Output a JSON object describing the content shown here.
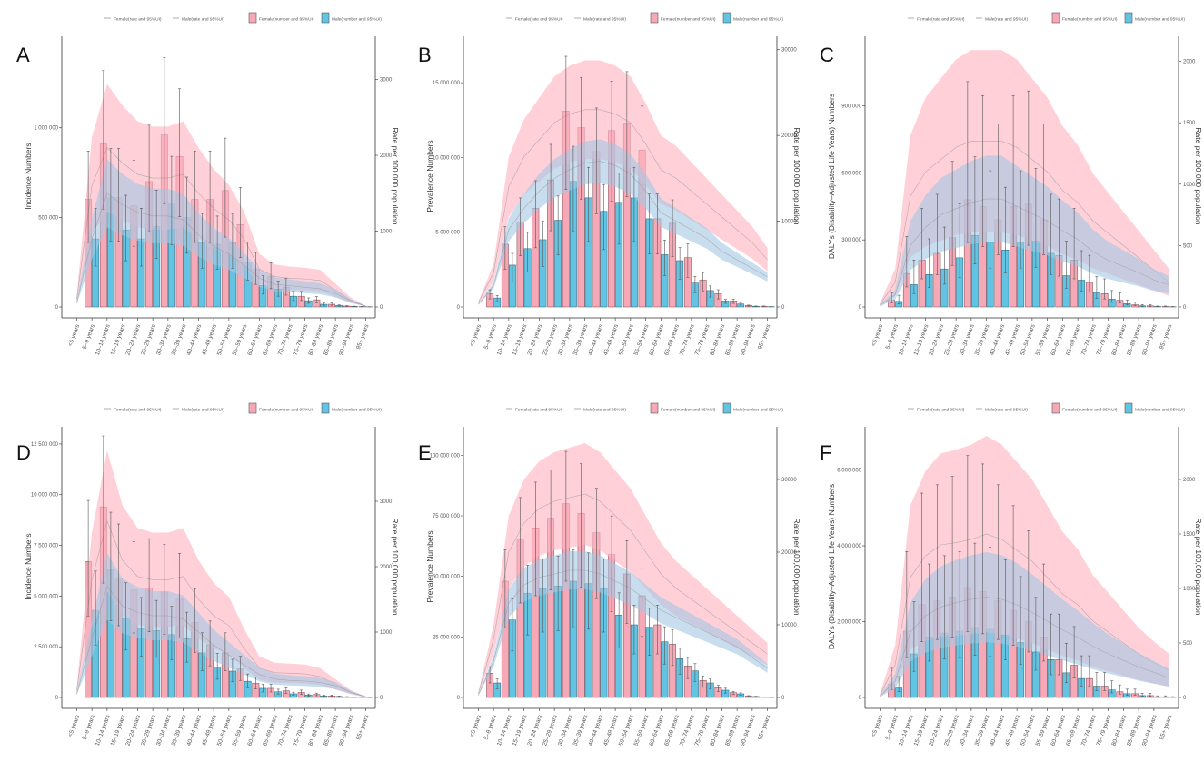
{
  "chart_data": {
    "type": "bar",
    "categories": [
      "<5 years",
      "5–9 years",
      "10–14 years",
      "15–19 years",
      "20–24 years",
      "25–29 years",
      "30–34 years",
      "35–39 years",
      "40–44 years",
      "45–49 years",
      "50–54 years",
      "55–59 years",
      "60–64 years",
      "65–69 years",
      "70–74 years",
      "75–79 years",
      "80–84 years",
      "85–89 years",
      "90–94 years",
      "95+ years"
    ],
    "legend": [
      "Female(rate and 95%UI)",
      "Male(rate and 95%UI)",
      "Female(number and 95%UI)",
      "Male(number and 95%UI)"
    ],
    "legend_placement": "top",
    "right_axis_label": "Rate per 100,000 population",
    "colors": {
      "female_bar": "#f7a8b6",
      "male_bar": "#62c3e3",
      "female_band": "#ffb3c0",
      "male_band": "#a6c8e4",
      "line": "#999999"
    },
    "panels": [
      {
        "letter": "A",
        "ylabel": "Incidence Numbers",
        "left_max": 1460000,
        "left_ticks": [
          0,
          500000,
          1000000
        ],
        "left_tick_labels": [
          "0",
          "500 000",
          "1 000 000"
        ],
        "right_max": 3450,
        "right_ticks": [
          0,
          1000,
          2000,
          3000
        ],
        "female": [
          0,
          600000,
          910000,
          610000,
          565000,
          700000,
          960000,
          840000,
          600000,
          600000,
          650000,
          460000,
          210000,
          170000,
          110000,
          60000,
          40000,
          15000,
          5000,
          2000
        ],
        "male": [
          0,
          380000,
          610000,
          430000,
          380000,
          450000,
          580000,
          500000,
          360000,
          350000,
          360000,
          250000,
          120000,
          100000,
          60000,
          35000,
          15000,
          8000,
          3000,
          1000
        ],
        "female_rate": [
          100,
          1600,
          2100,
          1900,
          1750,
          1700,
          1700,
          1750,
          1500,
          1300,
          1150,
          900,
          500,
          400,
          380,
          370,
          350,
          220,
          90,
          10
        ],
        "male_rate": [
          50,
          900,
          1500,
          1350,
          1250,
          1200,
          1200,
          1150,
          950,
          800,
          700,
          550,
          380,
          300,
          280,
          260,
          240,
          180,
          80,
          10
        ],
        "female_band": 0.4,
        "male_band": 0.3,
        "err_upper": 1.45
      },
      {
        "letter": "B",
        "ylabel": "Prevalence Numbers",
        "left_max": 17500000,
        "left_ticks": [
          0,
          5000000,
          10000000,
          15000000
        ],
        "left_tick_labels": [
          "0",
          "5 000 000",
          "10 000 000",
          "15 000 000"
        ],
        "right_max": 30500,
        "right_ticks": [
          0,
          10000,
          20000,
          30000
        ],
        "female": [
          0,
          900000,
          4200000,
          5700000,
          6600000,
          8500000,
          13100000,
          12000000,
          10400000,
          11800000,
          12300000,
          10500000,
          5900000,
          5600000,
          3300000,
          1800000,
          900000,
          400000,
          100000,
          50000
        ],
        "male": [
          0,
          600000,
          2800000,
          3900000,
          4500000,
          5800000,
          8400000,
          7300000,
          6400000,
          7000000,
          7300000,
          5900000,
          3500000,
          3100000,
          1600000,
          1100000,
          400000,
          200000,
          50000,
          20000
        ],
        "female_rate": [
          500,
          4000,
          14000,
          17500,
          19500,
          21500,
          22500,
          23000,
          23000,
          22500,
          21500,
          19000,
          16000,
          15000,
          13500,
          12000,
          10500,
          9000,
          7500,
          5500
        ],
        "male_rate": [
          300,
          2500,
          9000,
          11500,
          13500,
          15000,
          16000,
          16800,
          17000,
          16500,
          15500,
          13500,
          11000,
          10000,
          9000,
          8000,
          6500,
          5500,
          4500,
          3500
        ],
        "female_band": 0.25,
        "male_band": 0.15,
        "err_upper": 1.28
      },
      {
        "letter": "C",
        "ylabel": "DALYs (Disability–Adjusted Life Years) Numbers",
        "left_max": 1170000,
        "left_ticks": [
          0,
          300000,
          600000,
          900000
        ],
        "left_tick_labels": [
          "0",
          "300 000",
          "600 000",
          "900 000"
        ],
        "right_max": 2130,
        "right_ticks": [
          0,
          500,
          1000,
          1500,
          2000
        ],
        "female": [
          0,
          30000,
          150000,
          210000,
          240000,
          310000,
          480000,
          450000,
          390000,
          450000,
          460000,
          390000,
          230000,
          210000,
          110000,
          60000,
          30000,
          10000,
          5000,
          2000
        ],
        "male": [
          0,
          25000,
          100000,
          145000,
          170000,
          220000,
          320000,
          290000,
          255000,
          290000,
          295000,
          240000,
          140000,
          120000,
          65000,
          35000,
          15000,
          5000,
          2000,
          1000
        ],
        "female_rate": [
          20,
          200,
          900,
          1100,
          1200,
          1300,
          1350,
          1350,
          1350,
          1300,
          1200,
          1100,
          950,
          850,
          700,
          600,
          500,
          400,
          300,
          200
        ],
        "male_rate": [
          10,
          100,
          500,
          650,
          750,
          800,
          850,
          880,
          880,
          820,
          760,
          700,
          620,
          550,
          450,
          380,
          330,
          280,
          220,
          180
        ],
        "female_band": 0.55,
        "male_band": 0.4,
        "err_upper": 2.1
      },
      {
        "letter": "D",
        "ylabel": "Incidence Numbers",
        "left_max": 12900000,
        "left_ticks": [
          0,
          2500000,
          5000000,
          7500000,
          10000000,
          12500000
        ],
        "left_tick_labels": [
          "0",
          "2 500 000",
          "5 000 000",
          "7 500 000",
          "10 000 000",
          "12 500 000"
        ],
        "right_max": 4000,
        "right_ticks": [
          0,
          1000,
          2000,
          3000
        ],
        "female": [
          0,
          6700000,
          9400000,
          5900000,
          5300000,
          5400000,
          5200000,
          4900000,
          3700000,
          2600000,
          2200000,
          1400000,
          700000,
          450000,
          330000,
          250000,
          150000,
          80000,
          30000,
          10000
        ],
        "male": [
          0,
          4300000,
          6300000,
          3900000,
          3400000,
          3300000,
          3100000,
          2900000,
          2200000,
          1500000,
          1300000,
          800000,
          450000,
          280000,
          180000,
          120000,
          80000,
          50000,
          15000,
          5000
        ],
        "female_rate": [
          100,
          1800,
          2700,
          2100,
          1850,
          1800,
          1800,
          1850,
          1500,
          1250,
          1100,
          750,
          450,
          380,
          370,
          360,
          320,
          200,
          80,
          10
        ],
        "male_rate": [
          50,
          900,
          1700,
          1400,
          1300,
          1250,
          1250,
          1200,
          1000,
          800,
          650,
          500,
          350,
          280,
          260,
          250,
          230,
          180,
          80,
          10
        ],
        "female_band": 0.4,
        "male_band": 0.3,
        "err_upper": 1.45
      },
      {
        "letter": "E",
        "ylabel": "Prevalence Numbers",
        "left_max": 108000000,
        "left_ticks": [
          0,
          25000000,
          50000000,
          75000000,
          100000000
        ],
        "left_tick_labels": [
          "0",
          "25 000 000",
          "50 000 000",
          "75 000 000",
          "100 000 000"
        ],
        "right_max": 36000,
        "right_ticks": [
          0,
          10000,
          20000,
          30000
        ],
        "female": [
          0,
          10000000,
          48000000,
          65000000,
          70000000,
          74000000,
          80000000,
          76000000,
          68000000,
          59000000,
          51000000,
          42000000,
          30000000,
          22000000,
          13000000,
          7000000,
          4000000,
          2000000,
          600000,
          200000
        ],
        "male": [
          0,
          6000000,
          32000000,
          43000000,
          45000000,
          46000000,
          48000000,
          47000000,
          45000000,
          34000000,
          30000000,
          29000000,
          23000000,
          16000000,
          11000000,
          6000000,
          3000000,
          1500000,
          400000,
          100000
        ],
        "female_rate": [
          500,
          8000,
          20000,
          24000,
          26000,
          27000,
          27500,
          28000,
          27000,
          25000,
          23000,
          20000,
          17000,
          15000,
          13500,
          12000,
          10500,
          9000,
          7500,
          6000
        ],
        "male_rate": [
          300,
          5000,
          13000,
          15500,
          16500,
          17000,
          17500,
          17500,
          17000,
          16000,
          15000,
          13500,
          12000,
          11000,
          10000,
          9000,
          8000,
          7000,
          5500,
          4000
        ],
        "female_band": 0.25,
        "male_band": 0.15,
        "err_upper": 1.27
      },
      {
        "letter": "F",
        "ylabel": "DALYs (Disability–Adjusted Life Years) Numbers",
        "left_max": 6900000,
        "left_ticks": [
          0,
          2000000,
          4000000,
          6000000
        ],
        "left_tick_labels": [
          "0",
          "2 000 000",
          "4 000 000",
          "6 000 000"
        ],
        "right_max": 2400,
        "right_ticks": [
          0,
          500,
          1000,
          1500,
          2000
        ],
        "female": [
          0,
          350000,
          1750000,
          2450000,
          2550000,
          2650000,
          2900000,
          2800000,
          2550000,
          2300000,
          2000000,
          1600000,
          1000000,
          850000,
          500000,
          300000,
          150000,
          100000,
          50000,
          20000
        ],
        "male": [
          0,
          250000,
          1150000,
          1600000,
          1700000,
          1750000,
          1850000,
          1800000,
          1650000,
          1450000,
          1200000,
          1000000,
          650000,
          500000,
          300000,
          200000,
          100000,
          50000,
          20000,
          10000
        ],
        "female_rate": [
          20,
          300,
          1100,
          1300,
          1400,
          1420,
          1450,
          1500,
          1450,
          1350,
          1250,
          1100,
          950,
          850,
          700,
          600,
          500,
          400,
          320,
          250
        ],
        "male_rate": [
          10,
          150,
          600,
          750,
          830,
          870,
          900,
          920,
          900,
          850,
          780,
          700,
          620,
          550,
          470,
          400,
          340,
          280,
          230,
          180
        ],
        "female_band": 0.6,
        "male_band": 0.45,
        "err_upper": 2.2
      }
    ]
  }
}
